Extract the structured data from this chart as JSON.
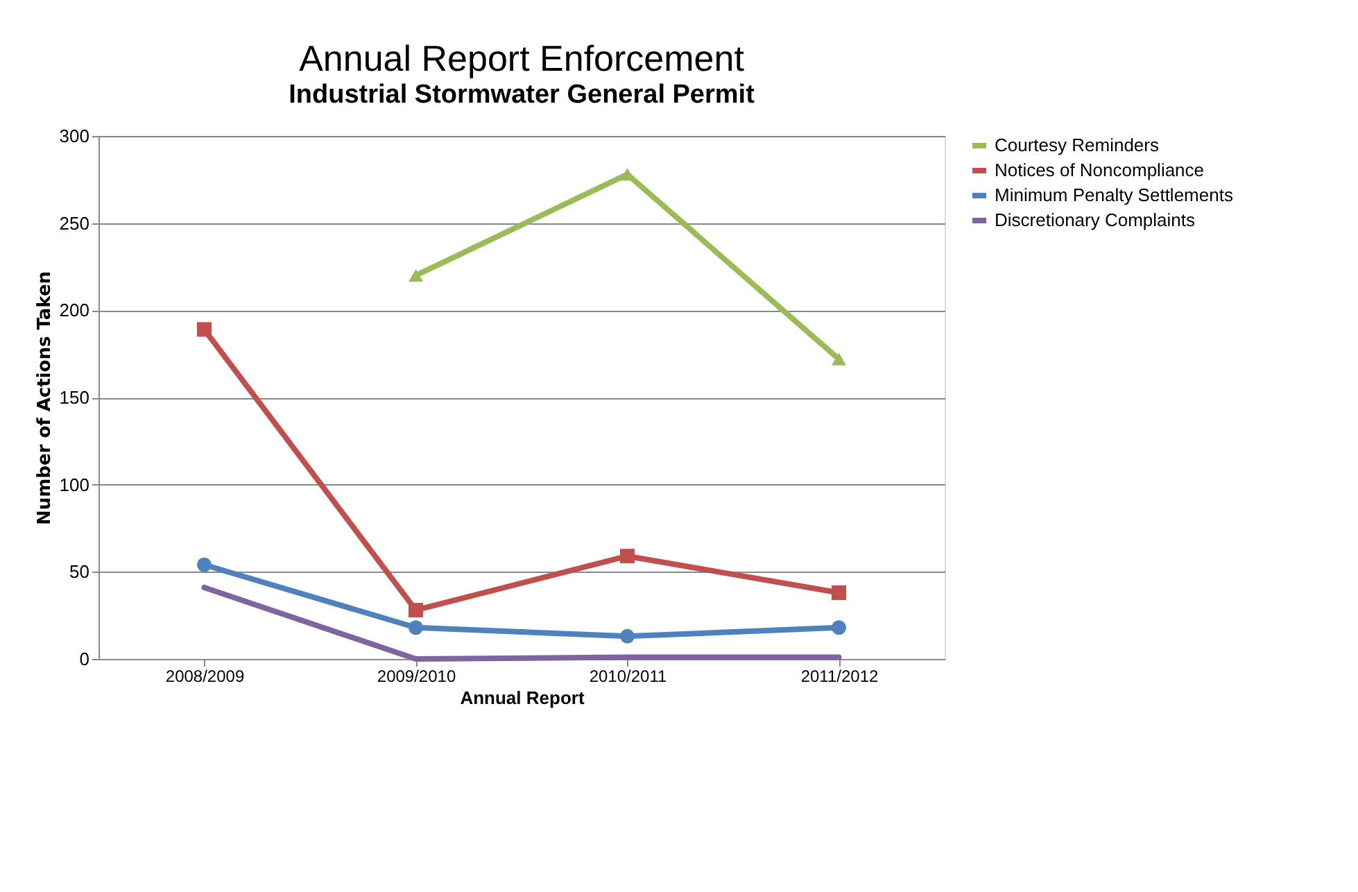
{
  "chart_data": {
    "type": "line",
    "title": "Annual Report Enforcement",
    "subtitle": "Industrial Stormwater General Permit",
    "xlabel": "Annual Report",
    "ylabel": "Number of Actions Taken",
    "categories": [
      "2008/2009",
      "2009/2010",
      "2010/2011",
      "2011/2012"
    ],
    "series": [
      {
        "name": "Courtesy Reminders",
        "color": "#9bbb59",
        "marker": "triangle",
        "values": [
          null,
          220,
          278,
          172
        ]
      },
      {
        "name": "Notices of Noncompliance",
        "color": "#c0504d",
        "marker": "square",
        "values": [
          189,
          28,
          59,
          38
        ]
      },
      {
        "name": "Minimum Penalty Settlements",
        "color": "#4f81bd",
        "marker": "circle",
        "values": [
          54,
          18,
          13,
          18
        ]
      },
      {
        "name": "Discretionary Complaints",
        "color": "#8064a2",
        "marker": "none",
        "values": [
          41,
          0,
          1,
          1
        ]
      }
    ],
    "ylim": [
      0,
      300
    ],
    "yticks": [
      0,
      50,
      100,
      150,
      200,
      250,
      300
    ],
    "grid": "y",
    "legend": "right",
    "line_style": "solid"
  }
}
